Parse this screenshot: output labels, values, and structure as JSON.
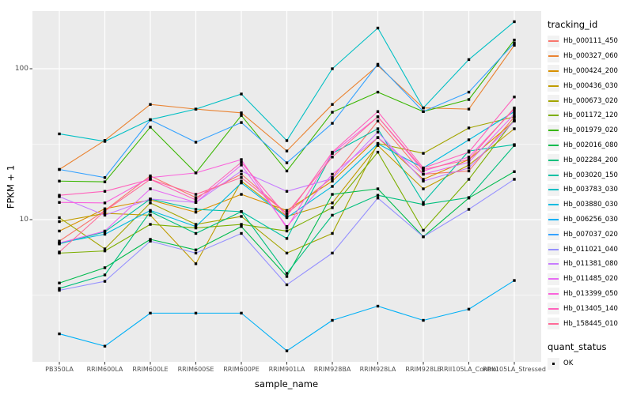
{
  "figure": {
    "y_axis": {
      "title": "FPKM + 1"
    },
    "x_axis": {
      "title": "sample_name"
    },
    "legend": {
      "tracking_title": "tracking_id",
      "quant_title": "quant_status",
      "quant_items": [
        "OK"
      ]
    }
  },
  "chart_data": {
    "type": "line",
    "title": "",
    "xlabel": "sample_name",
    "ylabel": "FPKM + 1",
    "y_scale": "log10",
    "y_ticks": [
      10,
      100
    ],
    "y_minor_ticks": [
      3.1623,
      31.6228,
      316.228
    ],
    "ylim": [
      1.1,
      240
    ],
    "grid": "white major and minor on grey panel",
    "legend_position": "right",
    "panel_bg": "#EBEBEB",
    "point_shape": "filled-black-square",
    "x_categories": [
      "PB350LA",
      "RRIM600LA",
      "RRIM600LE",
      "RRIM600SE",
      "RRIM600PE",
      "RRIM901LA",
      "RRIM928BA",
      "RRIM928LA",
      "RRIM928LE",
      "RRII105LA_Control",
      "RRII105LA_Stressed"
    ],
    "series": [
      {
        "name": "Hb_000111_450",
        "color": "#F8766D",
        "values": [
          7.2,
          11.5,
          19.5,
          14.0,
          20.0,
          11.0,
          19.0,
          45.0,
          20.0,
          21.0,
          48.0
        ]
      },
      {
        "name": "Hb_000327_060",
        "color": "#EA8331",
        "values": [
          21.5,
          33.5,
          58.0,
          54.0,
          51.0,
          28.5,
          58.0,
          105.0,
          55.0,
          54.0,
          143.0
        ]
      },
      {
        "name": "Hb_000424_200",
        "color": "#D89000",
        "values": [
          8.4,
          11.8,
          13.5,
          11.2,
          14.7,
          11.5,
          18.0,
          35.0,
          18.5,
          25.0,
          45.0
        ]
      },
      {
        "name": "Hb_000436_030",
        "color": "#C09B00",
        "values": [
          9.7,
          11.0,
          10.7,
          5.1,
          18.0,
          10.5,
          12.9,
          31.0,
          16.0,
          23.0,
          40.0
        ]
      },
      {
        "name": "Hb_000673_020",
        "color": "#A3A500",
        "values": [
          10.3,
          6.4,
          12.9,
          9.3,
          10.5,
          6.0,
          8.1,
          32.0,
          27.5,
          40.5,
          48.0
        ]
      },
      {
        "name": "Hb_001172_120",
        "color": "#7CAE00",
        "values": [
          6.0,
          6.2,
          9.3,
          8.8,
          9.3,
          8.4,
          12.0,
          28.0,
          8.5,
          18.5,
          46.0
        ]
      },
      {
        "name": "Hb_001979_020",
        "color": "#39B600",
        "values": [
          18.0,
          17.8,
          41.0,
          20.4,
          49.0,
          21.0,
          51.5,
          70.0,
          52.0,
          62.5,
          155.0
        ]
      },
      {
        "name": "Hb_002016_080",
        "color": "#00BB4E",
        "values": [
          3.8,
          4.8,
          7.4,
          6.3,
          9.0,
          4.2,
          14.7,
          16.0,
          7.7,
          13.9,
          20.8
        ]
      },
      {
        "name": "Hb_002284_200",
        "color": "#00BF7D",
        "values": [
          3.5,
          4.3,
          11.3,
          8.1,
          11.3,
          4.4,
          10.7,
          14.5,
          12.6,
          14.0,
          31.0
        ]
      },
      {
        "name": "Hb_003020_150",
        "color": "#00C1A3",
        "values": [
          6.9,
          8.3,
          13.7,
          11.7,
          11.3,
          7.5,
          27.5,
          40.0,
          13.0,
          28.5,
          31.4
        ]
      },
      {
        "name": "Hb_003783_030",
        "color": "#00BFC4",
        "values": [
          37.0,
          33.0,
          46.0,
          54.0,
          68.0,
          33.4,
          100.0,
          186.0,
          55.0,
          115.0,
          205.0
        ]
      },
      {
        "name": "Hb_003880_030",
        "color": "#00BAE0",
        "values": [
          7.0,
          8.0,
          11.5,
          9.0,
          17.5,
          10.3,
          16.6,
          31.8,
          22.0,
          33.8,
          52.0
        ]
      },
      {
        "name": "Hb_006256_030",
        "color": "#00B0F6",
        "values": [
          1.75,
          1.45,
          2.4,
          2.4,
          2.4,
          1.35,
          2.15,
          2.67,
          2.15,
          2.55,
          3.95
        ]
      },
      {
        "name": "Hb_007037_020",
        "color": "#35A2FF",
        "values": [
          21.5,
          19.0,
          45.8,
          32.6,
          44.0,
          23.8,
          43.5,
          107.0,
          52.0,
          70.0,
          148.0
        ]
      },
      {
        "name": "Hb_011021_040",
        "color": "#9590FF",
        "values": [
          3.4,
          3.9,
          7.2,
          6.0,
          8.1,
          3.7,
          6.0,
          13.9,
          7.7,
          11.7,
          18.5
        ]
      },
      {
        "name": "Hb_011381_080",
        "color": "#C77CFF",
        "values": [
          14.2,
          10.7,
          13.7,
          13.0,
          21.0,
          15.4,
          18.7,
          38.0,
          18.0,
          22.0,
          45.0
        ]
      },
      {
        "name": "Hb_011485_020",
        "color": "#E76BF3",
        "values": [
          7.0,
          8.4,
          16.0,
          13.0,
          23.0,
          9.0,
          20.0,
          35.0,
          20.0,
          24.0,
          50.0
        ]
      },
      {
        "name": "Hb_013399_050",
        "color": "#FA62DB",
        "values": [
          13.0,
          12.9,
          19.0,
          20.4,
          25.0,
          8.8,
          27.5,
          48.0,
          21.0,
          26.0,
          54.0
        ]
      },
      {
        "name": "Hb_013405_140",
        "color": "#FF62BC",
        "values": [
          14.5,
          15.4,
          18.5,
          13.5,
          24.0,
          10.5,
          28.0,
          52.0,
          22.0,
          28.0,
          65.0
        ]
      },
      {
        "name": "Hb_158445_010",
        "color": "#FF6A98",
        "values": [
          6.1,
          11.4,
          18.5,
          14.7,
          19.0,
          11.0,
          26.0,
          48.0,
          21.5,
          25.0,
          55.0
        ]
      }
    ]
  }
}
